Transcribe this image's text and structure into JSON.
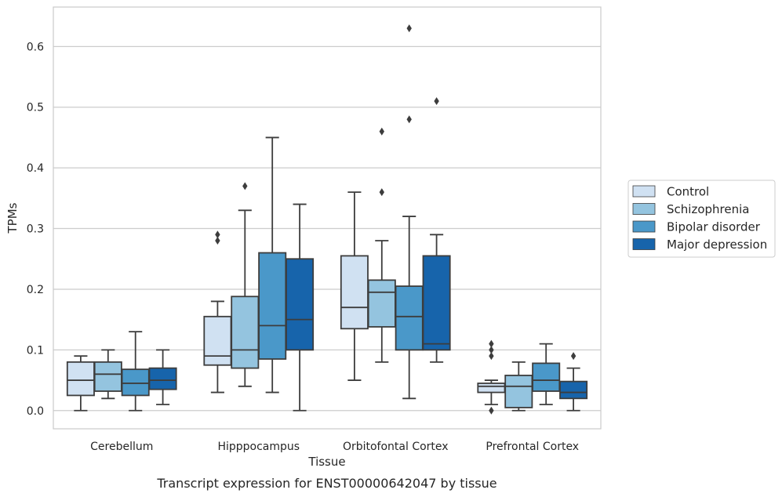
{
  "chart_data": {
    "type": "box",
    "caption": "Transcript expression for ENST00000642047 by tissue",
    "xlabel": "Tissue",
    "ylabel": "TPMs",
    "ylim": [
      -0.03,
      0.665
    ],
    "yticks": [
      0.0,
      0.1,
      0.2,
      0.3,
      0.4,
      0.5,
      0.6
    ],
    "ytick_labels": [
      "0.0",
      "0.1",
      "0.2",
      "0.3",
      "0.4",
      "0.5",
      "0.6"
    ],
    "grid": true,
    "legend_position": "right",
    "categories": [
      "Cerebellum",
      "Hipppocampus",
      "Orbitofontal Cortex",
      "Prefrontal Cortex"
    ],
    "series": [
      {
        "name": "Control",
        "color": "#d0e1f2",
        "boxes": [
          {
            "whislo": 0.0,
            "q1": 0.025,
            "med": 0.05,
            "q3": 0.08,
            "whishi": 0.09,
            "fliers": []
          },
          {
            "whislo": 0.03,
            "q1": 0.075,
            "med": 0.09,
            "q3": 0.155,
            "whishi": 0.18,
            "fliers": [
              0.28,
              0.29
            ]
          },
          {
            "whislo": 0.05,
            "q1": 0.135,
            "med": 0.17,
            "q3": 0.255,
            "whishi": 0.36,
            "fliers": []
          },
          {
            "whislo": 0.01,
            "q1": 0.03,
            "med": 0.04,
            "q3": 0.045,
            "whishi": 0.05,
            "fliers": [
              0.0,
              0.09,
              0.1,
              0.11
            ]
          }
        ]
      },
      {
        "name": "Schizophrenia",
        "color": "#94c4df",
        "boxes": [
          {
            "whislo": 0.02,
            "q1": 0.032,
            "med": 0.06,
            "q3": 0.08,
            "whishi": 0.1,
            "fliers": []
          },
          {
            "whislo": 0.04,
            "q1": 0.07,
            "med": 0.1,
            "q3": 0.188,
            "whishi": 0.33,
            "fliers": [
              0.37
            ]
          },
          {
            "whislo": 0.08,
            "q1": 0.138,
            "med": 0.195,
            "q3": 0.215,
            "whishi": 0.28,
            "fliers": [
              0.36,
              0.46
            ]
          },
          {
            "whislo": 0.0,
            "q1": 0.005,
            "med": 0.04,
            "q3": 0.058,
            "whishi": 0.08,
            "fliers": []
          }
        ]
      },
      {
        "name": "Bipolar disorder",
        "color": "#4a98c9",
        "boxes": [
          {
            "whislo": 0.0,
            "q1": 0.025,
            "med": 0.045,
            "q3": 0.068,
            "whishi": 0.13,
            "fliers": []
          },
          {
            "whislo": 0.03,
            "q1": 0.085,
            "med": 0.14,
            "q3": 0.26,
            "whishi": 0.45,
            "fliers": []
          },
          {
            "whislo": 0.02,
            "q1": 0.1,
            "med": 0.155,
            "q3": 0.205,
            "whishi": 0.32,
            "fliers": [
              0.48,
              0.63
            ]
          },
          {
            "whislo": 0.01,
            "q1": 0.032,
            "med": 0.05,
            "q3": 0.078,
            "whishi": 0.11,
            "fliers": []
          }
        ]
      },
      {
        "name": "Major depression",
        "color": "#1764ab",
        "boxes": [
          {
            "whislo": 0.01,
            "q1": 0.035,
            "med": 0.05,
            "q3": 0.07,
            "whishi": 0.1,
            "fliers": []
          },
          {
            "whislo": 0.0,
            "q1": 0.1,
            "med": 0.15,
            "q3": 0.25,
            "whishi": 0.34,
            "fliers": []
          },
          {
            "whislo": 0.08,
            "q1": 0.1,
            "med": 0.11,
            "q3": 0.255,
            "whishi": 0.29,
            "fliers": [
              0.51
            ]
          },
          {
            "whislo": 0.0,
            "q1": 0.02,
            "med": 0.03,
            "q3": 0.048,
            "whishi": 0.07,
            "fliers": [
              0.09
            ]
          }
        ]
      }
    ]
  }
}
